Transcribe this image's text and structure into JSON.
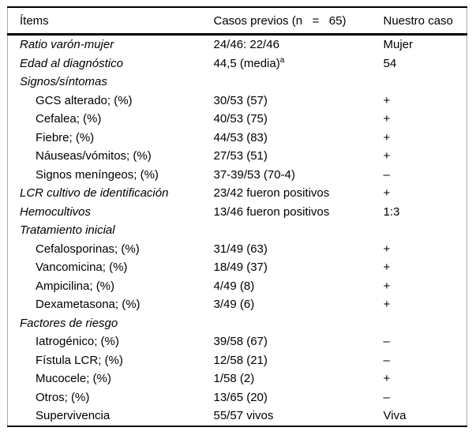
{
  "style": {
    "rule_color": "#000000",
    "side_border_color": "#ababab",
    "text_color": "#000000",
    "background": "#ffffff"
  },
  "table": {
    "columns": [
      "Ítems",
      "Casos previos (n   =   65)",
      "Nuestro caso"
    ],
    "rows": [
      {
        "label": "Ratio varón-mujer",
        "italic": true,
        "indent": 0,
        "casos": "24/46: 22/46",
        "nuestro": "Mujer"
      },
      {
        "label": "Edad al diagnóstico",
        "italic": true,
        "indent": 0,
        "casos": "44,5 (media)",
        "casos_sup": "a",
        "nuestro": "54"
      },
      {
        "label": "Signos/síntomas",
        "italic": true,
        "indent": 0,
        "casos": "",
        "nuestro": ""
      },
      {
        "label": "GCS alterado; (%)",
        "italic": false,
        "indent": 1,
        "casos": "30/53 (57)",
        "nuestro": "+"
      },
      {
        "label": "Cefalea; (%)",
        "italic": false,
        "indent": 1,
        "casos": "40/53 (75)",
        "nuestro": "+"
      },
      {
        "label": "Fiebre; (%)",
        "italic": false,
        "indent": 1,
        "casos": "44/53 (83)",
        "nuestro": "+"
      },
      {
        "label": "Náuseas/vómitos; (%)",
        "italic": false,
        "indent": 1,
        "casos": "27/53 (51)",
        "nuestro": "+"
      },
      {
        "label": "Signos meníngeos; (%)",
        "italic": false,
        "indent": 1,
        "casos": "37-39/53 (70-4)",
        "nuestro": "–"
      },
      {
        "label": "LCR cultivo de identificación",
        "italic": true,
        "indent": 0,
        "casos": "23/42 fueron positivos",
        "nuestro": "+"
      },
      {
        "label": "Hemocultivos",
        "italic": true,
        "indent": 0,
        "casos": "13/46 fueron positivos",
        "nuestro": "1:3"
      },
      {
        "label": "Tratamiento inicial",
        "italic": true,
        "indent": 0,
        "casos": "",
        "nuestro": ""
      },
      {
        "label": "Cefalosporinas; (%)",
        "italic": false,
        "indent": 1,
        "casos": "31/49 (63)",
        "nuestro": "+"
      },
      {
        "label": "Vancomicina; (%)",
        "italic": false,
        "indent": 1,
        "casos": "18/49 (37)",
        "nuestro": "+"
      },
      {
        "label": "Ampicilina; (%)",
        "italic": false,
        "indent": 1,
        "casos": "4/49 (8)",
        "nuestro": "+"
      },
      {
        "label": "Dexametasona; (%)",
        "italic": false,
        "indent": 1,
        "casos": "3/49 (6)",
        "nuestro": "+"
      },
      {
        "label": "Factores de riesgo",
        "italic": true,
        "indent": 0,
        "casos": "",
        "nuestro": ""
      },
      {
        "label": "Iatrogénico; (%)",
        "italic": false,
        "indent": 1,
        "casos": "39/58 (67)",
        "nuestro": "–"
      },
      {
        "label": "Fístula LCR; (%)",
        "italic": false,
        "indent": 1,
        "casos": "12/58 (21)",
        "nuestro": "–"
      },
      {
        "label": "Mucocele; (%)",
        "italic": false,
        "indent": 1,
        "casos": "1/58 (2)",
        "nuestro": "+"
      },
      {
        "label": "Otros; (%)",
        "italic": false,
        "indent": 1,
        "casos": "13/65 (20)",
        "nuestro": "–"
      },
      {
        "label": "Supervivencia",
        "italic": false,
        "indent": 1,
        "casos": "55/57 vivos",
        "nuestro": "Viva"
      }
    ]
  }
}
